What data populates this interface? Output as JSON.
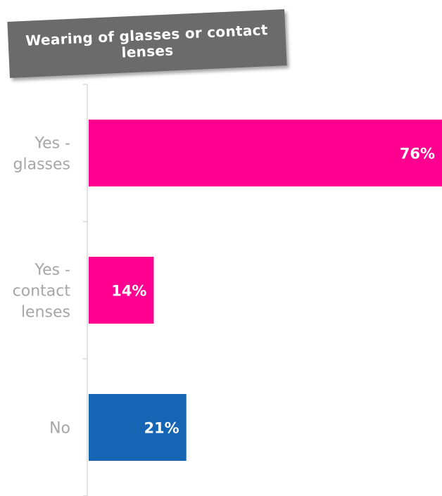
{
  "chart_data": {
    "type": "bar",
    "orientation": "horizontal",
    "title": "Wearing of glasses or contact lenses",
    "categories": [
      [
        "Yes -",
        "glasses"
      ],
      [
        "Yes -",
        "contact",
        "lenses"
      ],
      [
        "No"
      ]
    ],
    "values": [
      76,
      14,
      21
    ],
    "value_labels": [
      "76%",
      "14%",
      "21%"
    ],
    "unit": "%",
    "colors": [
      "#ff0090",
      "#ff0090",
      "#1565b4"
    ],
    "xlim": [
      0,
      76
    ],
    "grid": false,
    "legend": "none"
  }
}
